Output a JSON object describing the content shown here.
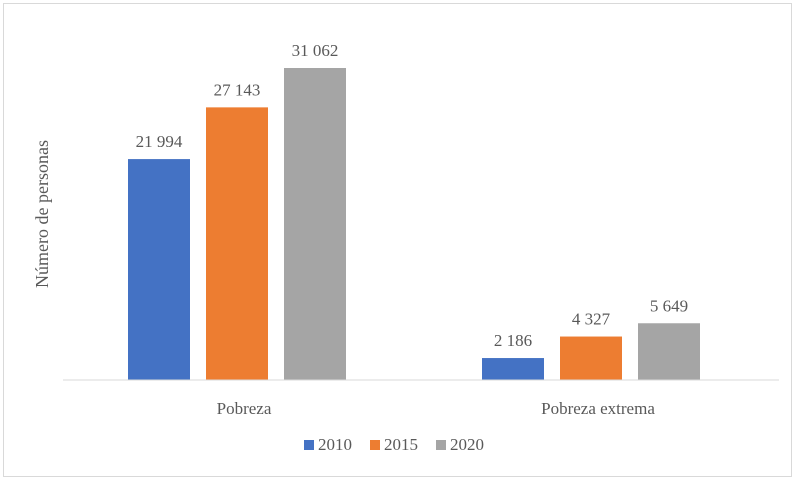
{
  "chart_data": {
    "type": "bar",
    "title": "",
    "xlabel": "",
    "ylabel": "Número de personas",
    "categories": [
      "Pobreza",
      "Pobreza extrema"
    ],
    "series": [
      {
        "name": "2010",
        "values": [
          21994,
          2186
        ],
        "labels": [
          "21 994",
          "2 186"
        ],
        "color": "#4472C4"
      },
      {
        "name": "2015",
        "values": [
          27143,
          4327
        ],
        "labels": [
          "27 143",
          "4 327"
        ],
        "color": "#ED7D31"
      },
      {
        "name": "2020",
        "values": [
          31062,
          5649
        ],
        "labels": [
          "31 062",
          "5 649"
        ],
        "color": "#A5A5A5"
      }
    ],
    "ylim": [
      0,
      31062
    ],
    "grid": false,
    "legend_position": "bottom"
  }
}
